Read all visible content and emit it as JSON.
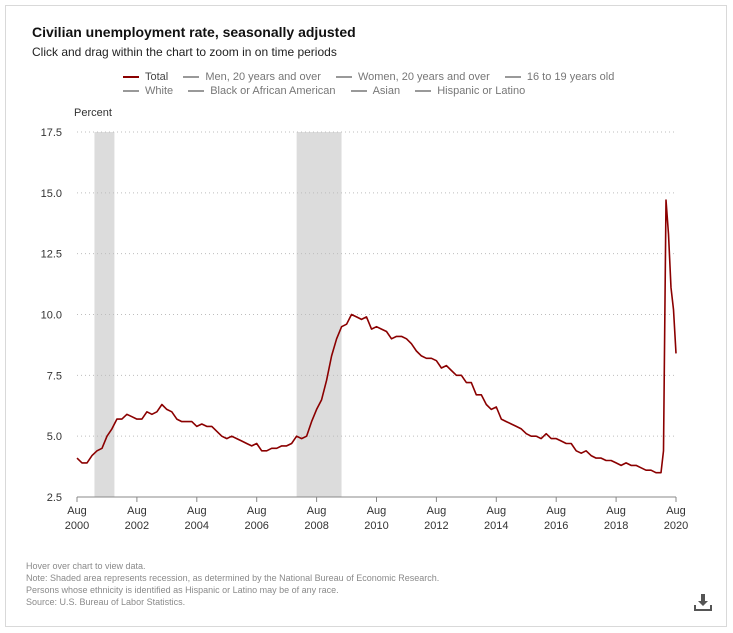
{
  "header": {
    "title": "Civilian unemployment rate, seasonally adjusted",
    "subtitle": "Click and drag within the chart to zoom in on time periods"
  },
  "legend": {
    "row1": [
      {
        "label": "Total",
        "color": "#8b0000",
        "active": true
      },
      {
        "label": "Men, 20 years and over",
        "color": "#999999",
        "active": false
      },
      {
        "label": "Women, 20 years and over",
        "color": "#999999",
        "active": false
      },
      {
        "label": "16 to 19 years old",
        "color": "#999999",
        "active": false
      }
    ],
    "row2": [
      {
        "label": "White",
        "color": "#999999",
        "active": false
      },
      {
        "label": "Black or African American",
        "color": "#999999",
        "active": false
      },
      {
        "label": "Asian",
        "color": "#999999",
        "active": false
      },
      {
        "label": "Hispanic or Latino",
        "color": "#999999",
        "active": false
      }
    ]
  },
  "notes": {
    "line1": "Hover over chart to view data.",
    "line2": "Note: Shaded area represents recession, as determined by the National Bureau of Economic Research.",
    "line3": "Persons whose ethnicity is identified as Hispanic or Latino may be of any race.",
    "line4": "Source: U.S. Bureau of Labor Statistics."
  },
  "icons": {
    "download": "download-icon"
  },
  "chart_data": {
    "type": "line",
    "title": "Civilian unemployment rate, seasonally adjusted",
    "ylabel": "Percent",
    "xlabel": "",
    "ylim": [
      2.5,
      17.5
    ],
    "xlim": [
      "2000-08",
      "2020-08"
    ],
    "yticks": [
      "2.5",
      "5.0",
      "7.5",
      "10.0",
      "12.5",
      "15.0",
      "17.5"
    ],
    "xticks": [
      {
        "month": "Aug",
        "year": "2000"
      },
      {
        "month": "Aug",
        "year": "2002"
      },
      {
        "month": "Aug",
        "year": "2004"
      },
      {
        "month": "Aug",
        "year": "2006"
      },
      {
        "month": "Aug",
        "year": "2008"
      },
      {
        "month": "Aug",
        "year": "2010"
      },
      {
        "month": "Aug",
        "year": "2012"
      },
      {
        "month": "Aug",
        "year": "2014"
      },
      {
        "month": "Aug",
        "year": "2016"
      },
      {
        "month": "Aug",
        "year": "2018"
      },
      {
        "month": "Aug",
        "year": "2020"
      }
    ],
    "grid": true,
    "recessions": [
      {
        "start": "2001-03",
        "end": "2001-11"
      },
      {
        "start": "2007-12",
        "end": "2009-06"
      }
    ],
    "series": [
      {
        "name": "Total",
        "color": "#8b0000",
        "x": [
          "2000-08",
          "2000-10",
          "2000-12",
          "2001-02",
          "2001-04",
          "2001-06",
          "2001-08",
          "2001-10",
          "2001-12",
          "2002-02",
          "2002-04",
          "2002-06",
          "2002-08",
          "2002-10",
          "2002-12",
          "2003-02",
          "2003-04",
          "2003-06",
          "2003-08",
          "2003-10",
          "2003-12",
          "2004-02",
          "2004-04",
          "2004-06",
          "2004-08",
          "2004-10",
          "2004-12",
          "2005-02",
          "2005-04",
          "2005-06",
          "2005-08",
          "2005-10",
          "2005-12",
          "2006-02",
          "2006-04",
          "2006-06",
          "2006-08",
          "2006-10",
          "2006-12",
          "2007-02",
          "2007-04",
          "2007-06",
          "2007-08",
          "2007-10",
          "2007-12",
          "2008-02",
          "2008-04",
          "2008-06",
          "2008-08",
          "2008-10",
          "2008-12",
          "2009-02",
          "2009-04",
          "2009-06",
          "2009-08",
          "2009-10",
          "2009-12",
          "2010-02",
          "2010-04",
          "2010-06",
          "2010-08",
          "2010-10",
          "2010-12",
          "2011-02",
          "2011-04",
          "2011-06",
          "2011-08",
          "2011-10",
          "2011-12",
          "2012-02",
          "2012-04",
          "2012-06",
          "2012-08",
          "2012-10",
          "2012-12",
          "2013-02",
          "2013-04",
          "2013-06",
          "2013-08",
          "2013-10",
          "2013-12",
          "2014-02",
          "2014-04",
          "2014-06",
          "2014-08",
          "2014-10",
          "2014-12",
          "2015-02",
          "2015-04",
          "2015-06",
          "2015-08",
          "2015-10",
          "2015-12",
          "2016-02",
          "2016-04",
          "2016-06",
          "2016-08",
          "2016-10",
          "2016-12",
          "2017-02",
          "2017-04",
          "2017-06",
          "2017-08",
          "2017-10",
          "2017-12",
          "2018-02",
          "2018-04",
          "2018-06",
          "2018-08",
          "2018-10",
          "2018-12",
          "2019-02",
          "2019-04",
          "2019-06",
          "2019-08",
          "2019-10",
          "2019-12",
          "2020-02",
          "2020-03",
          "2020-04",
          "2020-05",
          "2020-06",
          "2020-07",
          "2020-08"
        ],
        "values": [
          4.1,
          3.9,
          3.9,
          4.2,
          4.4,
          4.5,
          5.0,
          5.3,
          5.7,
          5.7,
          5.9,
          5.8,
          5.7,
          5.7,
          6.0,
          5.9,
          6.0,
          6.3,
          6.1,
          6.0,
          5.7,
          5.6,
          5.6,
          5.6,
          5.4,
          5.5,
          5.4,
          5.4,
          5.2,
          5.0,
          4.9,
          5.0,
          4.9,
          4.8,
          4.7,
          4.6,
          4.7,
          4.4,
          4.4,
          4.5,
          4.5,
          4.6,
          4.6,
          4.7,
          5.0,
          4.9,
          5.0,
          5.6,
          6.1,
          6.5,
          7.3,
          8.3,
          9.0,
          9.5,
          9.6,
          10.0,
          9.9,
          9.8,
          9.9,
          9.4,
          9.5,
          9.4,
          9.3,
          9.0,
          9.1,
          9.1,
          9.0,
          8.8,
          8.5,
          8.3,
          8.2,
          8.2,
          8.1,
          7.8,
          7.9,
          7.7,
          7.5,
          7.5,
          7.2,
          7.2,
          6.7,
          6.7,
          6.3,
          6.1,
          6.2,
          5.7,
          5.6,
          5.5,
          5.4,
          5.3,
          5.1,
          5.0,
          5.0,
          4.9,
          5.1,
          4.9,
          4.9,
          4.8,
          4.7,
          4.7,
          4.4,
          4.3,
          4.4,
          4.2,
          4.1,
          4.1,
          4.0,
          4.0,
          3.9,
          3.8,
          3.9,
          3.8,
          3.8,
          3.7,
          3.6,
          3.6,
          3.5,
          3.5,
          4.4,
          14.7,
          13.3,
          11.1,
          10.2,
          8.4
        ]
      }
    ]
  }
}
